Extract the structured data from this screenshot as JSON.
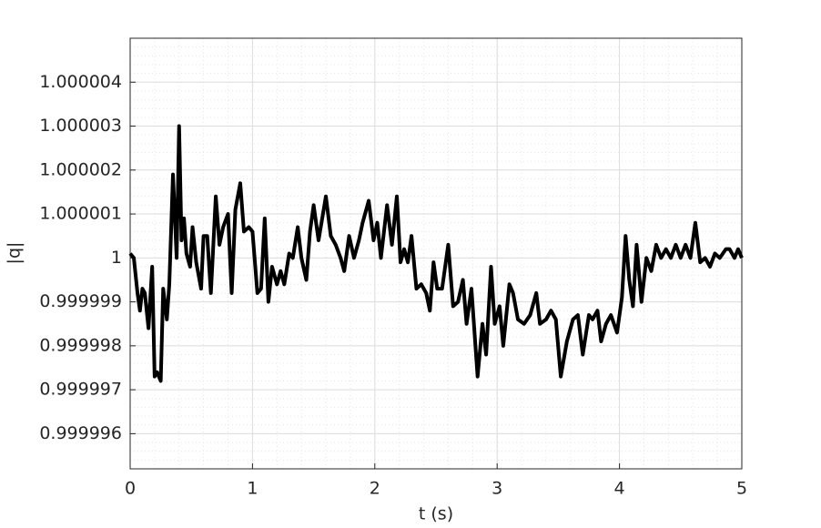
{
  "chart_data": {
    "type": "line",
    "xlabel": "t (s)",
    "ylabel": "|q|",
    "xlim": [
      0,
      5
    ],
    "xticks": [
      0,
      1,
      2,
      3,
      4,
      5
    ],
    "ylim": [
      0.9999952,
      1.000005
    ],
    "yticks": [
      0.999996,
      0.999997,
      0.999998,
      0.999999,
      1,
      1.000001,
      1.000002,
      1.000003,
      1.000004
    ],
    "grid": true,
    "minor_grid": true,
    "series": [
      {
        "color": "#000000",
        "x": [
          0,
          0.03,
          0.06,
          0.08,
          0.1,
          0.12,
          0.15,
          0.18,
          0.2,
          0.22,
          0.25,
          0.27,
          0.3,
          0.32,
          0.35,
          0.38,
          0.4,
          0.42,
          0.44,
          0.46,
          0.49,
          0.51,
          0.54,
          0.58,
          0.6,
          0.63,
          0.66,
          0.7,
          0.73,
          0.76,
          0.8,
          0.83,
          0.86,
          0.9,
          0.93,
          0.97,
          1.0,
          1.04,
          1.07,
          1.1,
          1.13,
          1.16,
          1.2,
          1.23,
          1.26,
          1.3,
          1.33,
          1.37,
          1.4,
          1.44,
          1.47,
          1.5,
          1.54,
          1.57,
          1.6,
          1.64,
          1.68,
          1.72,
          1.75,
          1.79,
          1.83,
          1.87,
          1.9,
          1.95,
          1.99,
          2.02,
          2.05,
          2.1,
          2.14,
          2.18,
          2.21,
          2.24,
          2.27,
          2.3,
          2.34,
          2.38,
          2.42,
          2.45,
          2.48,
          2.51,
          2.55,
          2.6,
          2.64,
          2.68,
          2.72,
          2.75,
          2.79,
          2.84,
          2.88,
          2.91,
          2.95,
          2.98,
          3.02,
          3.05,
          3.1,
          3.13,
          3.17,
          3.22,
          3.27,
          3.32,
          3.35,
          3.4,
          3.44,
          3.48,
          3.52,
          3.57,
          3.62,
          3.66,
          3.7,
          3.75,
          3.78,
          3.82,
          3.85,
          3.89,
          3.93,
          3.98,
          4.02,
          4.05,
          4.08,
          4.11,
          4.14,
          4.18,
          4.22,
          4.26,
          4.3,
          4.34,
          4.38,
          4.42,
          4.46,
          4.5,
          4.54,
          4.58,
          4.62,
          4.66,
          4.7,
          4.74,
          4.78,
          4.82,
          4.87,
          4.9,
          4.94,
          4.97,
          5.0
        ],
        "values": [
          1.0000001,
          1.0,
          0.9999992,
          0.9999988,
          0.9999993,
          0.9999992,
          0.9999984,
          0.9999998,
          0.9999973,
          0.9999974,
          0.9999972,
          0.9999993,
          0.9999986,
          0.9999994,
          1.0000019,
          1.0,
          1.000003,
          1.0000004,
          1.0000009,
          1.0000001,
          0.9999998,
          1.0000007,
          0.9999999,
          0.9999993,
          1.0000005,
          1.0000005,
          0.9999992,
          1.0000014,
          1.0000003,
          1.0000007,
          1.000001,
          0.9999992,
          1.0000011,
          1.0000017,
          1.0000006,
          1.0000007,
          1.0000006,
          0.9999992,
          0.9999993,
          1.0000009,
          0.999999,
          0.9999998,
          0.9999994,
          0.9999997,
          0.9999994,
          1.0000001,
          1.0,
          1.0000007,
          1.0,
          0.9999995,
          1.0000006,
          1.0000012,
          1.0000004,
          1.0000009,
          1.0000014,
          1.0000005,
          1.0000003,
          1.0,
          0.9999997,
          1.0000005,
          1.0,
          1.0000004,
          1.0000008,
          1.0000013,
          1.0000004,
          1.0000008,
          1.0,
          1.0000012,
          1.0000003,
          1.0000014,
          0.9999999,
          1.0000002,
          0.9999999,
          1.0000005,
          0.9999993,
          0.9999994,
          0.9999992,
          0.9999988,
          0.9999999,
          0.9999993,
          0.9999993,
          1.0000003,
          0.9999989,
          0.999999,
          0.9999995,
          0.9999985,
          0.9999993,
          0.9999973,
          0.9999985,
          0.9999978,
          0.9999998,
          0.9999985,
          0.9999989,
          0.999998,
          0.9999994,
          0.9999992,
          0.9999986,
          0.9999985,
          0.9999987,
          0.9999992,
          0.9999985,
          0.9999986,
          0.9999988,
          0.9999986,
          0.9999973,
          0.9999981,
          0.9999986,
          0.9999987,
          0.9999978,
          0.9999987,
          0.9999986,
          0.9999988,
          0.9999981,
          0.9999985,
          0.9999987,
          0.9999983,
          0.9999991,
          1.0000005,
          0.9999995,
          0.9999989,
          1.0000003,
          0.999999,
          1.0,
          0.9999997,
          1.0000003,
          1.0,
          1.0000002,
          1.0,
          1.0000003,
          1.0,
          1.0000003,
          1.0,
          1.0000008,
          0.9999999,
          1.0,
          0.9999998,
          1.0000001,
          1.0,
          1.0000002,
          1.0000002,
          1.0,
          1.0000002,
          1.0
        ]
      }
    ]
  }
}
